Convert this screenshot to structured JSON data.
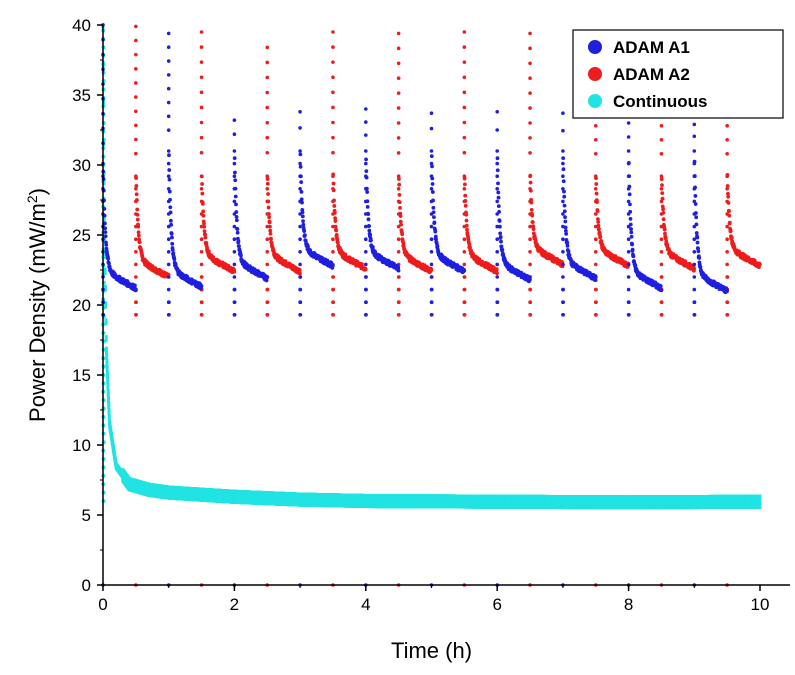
{
  "chart_data": {
    "type": "scatter",
    "xlabel": "Time (h)",
    "ylabel_main": "Power Density (mW/m",
    "ylabel_sup": "2",
    "ylabel_close": ")",
    "xlim": [
      0,
      10
    ],
    "ylim": [
      0,
      40
    ],
    "x_ticks": [
      0,
      2,
      4,
      6,
      8,
      10
    ],
    "y_ticks": [
      0,
      5,
      10,
      15,
      20,
      25,
      30,
      35,
      40
    ],
    "x_tick_labels": [
      "0",
      "2",
      "4",
      "6",
      "8",
      "10"
    ],
    "y_tick_labels": [
      "0",
      "5",
      "10",
      "15",
      "20",
      "25",
      "30",
      "35",
      "40"
    ],
    "legend_position": "top-right",
    "series": [
      {
        "name": "ADAM A1",
        "color": "#1f1fe0",
        "pattern": "on every other half-hour: start at 0 h, 1 h, 2 h ... 9 h; sharp peak then decay to ~21-23",
        "segments": [
          {
            "start": 0.0,
            "end": 0.5,
            "peak": 30.5,
            "floor": 21.2
          },
          {
            "start": 1.0,
            "end": 1.5,
            "peak": 31.5,
            "floor": 21.3
          },
          {
            "start": 2.0,
            "end": 2.5,
            "peak": 31.2,
            "floor": 21.9
          },
          {
            "start": 3.0,
            "end": 3.5,
            "peak": 31.5,
            "floor": 22.8
          },
          {
            "start": 4.0,
            "end": 4.5,
            "peak": 31.2,
            "floor": 22.6
          },
          {
            "start": 5.0,
            "end": 5.5,
            "peak": 31.5,
            "floor": 22.4
          },
          {
            "start": 6.0,
            "end": 6.5,
            "peak": 31.2,
            "floor": 21.8
          },
          {
            "start": 7.0,
            "end": 7.5,
            "peak": 31.2,
            "floor": 21.9
          },
          {
            "start": 8.0,
            "end": 8.5,
            "peak": 31.0,
            "floor": 21.2
          },
          {
            "start": 9.0,
            "end": 9.5,
            "peak": 31.2,
            "floor": 21.0
          }
        ],
        "outliers_high": [
          [
            0.0,
            40.0
          ],
          [
            1.0,
            39.4
          ],
          [
            2.0,
            33.2
          ],
          [
            3.0,
            33.8
          ],
          [
            4.0,
            34.0
          ],
          [
            5.0,
            33.7
          ],
          [
            6.0,
            33.8
          ],
          [
            7.0,
            33.7
          ],
          [
            8.0,
            33.0
          ],
          [
            9.0,
            32.9
          ]
        ]
      },
      {
        "name": "ADAM A2",
        "color": "#ee1c1c",
        "segments": [
          {
            "start": 0.5,
            "end": 1.0,
            "peak": 29.8,
            "floor": 22.0
          },
          {
            "start": 1.5,
            "end": 2.0,
            "peak": 29.8,
            "floor": 22.4
          },
          {
            "start": 2.5,
            "end": 3.0,
            "peak": 29.8,
            "floor": 22.4
          },
          {
            "start": 3.5,
            "end": 4.0,
            "peak": 29.8,
            "floor": 22.6
          },
          {
            "start": 4.5,
            "end": 5.0,
            "peak": 29.8,
            "floor": 22.4
          },
          {
            "start": 5.5,
            "end": 6.0,
            "peak": 29.8,
            "floor": 22.4
          },
          {
            "start": 6.5,
            "end": 7.0,
            "peak": 29.8,
            "floor": 22.9
          },
          {
            "start": 7.5,
            "end": 8.0,
            "peak": 29.8,
            "floor": 22.8
          },
          {
            "start": 8.5,
            "end": 9.0,
            "peak": 29.8,
            "floor": 22.6
          },
          {
            "start": 9.5,
            "end": 10.0,
            "peak": 29.8,
            "floor": 22.8
          }
        ],
        "outliers_high": [
          [
            0.5,
            39.9
          ],
          [
            1.5,
            39.5
          ],
          [
            2.5,
            38.4
          ],
          [
            3.5,
            39.5
          ],
          [
            4.5,
            39.4
          ],
          [
            5.5,
            39.5
          ],
          [
            6.5,
            39.4
          ],
          [
            7.5,
            32.8
          ],
          [
            8.5,
            32.8
          ],
          [
            9.5,
            32.8
          ]
        ]
      },
      {
        "name": "Continuous",
        "color": "#22e3e3",
        "description": "continuous run starting near 40 at t=0, decaying rapidly to ~7 by 0.3 h and slowly to ~5.9 by 10 h",
        "points": [
          [
            0.0,
            40.0
          ],
          [
            0.02,
            26.0
          ],
          [
            0.05,
            17.0
          ],
          [
            0.1,
            11.5
          ],
          [
            0.2,
            8.5
          ],
          [
            0.4,
            7.2
          ],
          [
            0.7,
            6.8
          ],
          [
            1.0,
            6.6
          ],
          [
            2.0,
            6.3
          ],
          [
            3.0,
            6.1
          ],
          [
            4.0,
            6.0
          ],
          [
            6.0,
            5.95
          ],
          [
            8.0,
            5.9
          ],
          [
            10.0,
            5.95
          ]
        ],
        "band_width": 1.0
      }
    ]
  }
}
